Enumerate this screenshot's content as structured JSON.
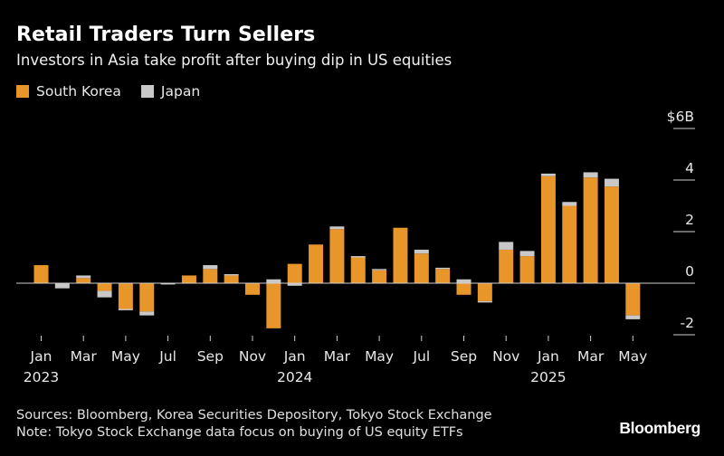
{
  "header": {
    "title": "Retail Traders Turn Sellers",
    "subtitle": "Investors in Asia take profit after buying dip in US equities"
  },
  "legend": [
    {
      "label": "South Korea",
      "color": "#e8952a"
    },
    {
      "label": "Japan",
      "color": "#c8c8c8"
    }
  ],
  "footer": {
    "sources": "Sources: Bloomberg, Korea Securities Depository, Tokyo Stock Exchange",
    "note": "Note: Tokyo Stock Exchange data focus on buying of US equity ETFs",
    "brand": "Bloomberg"
  },
  "chart_data": {
    "type": "bar",
    "stacked": true,
    "grid": false,
    "y_axis_side": "right",
    "ylim": [
      -2.5,
      6
    ],
    "ytick_labels": [
      {
        "value": 6,
        "label": "$6B"
      },
      {
        "value": 4,
        "label": "4"
      },
      {
        "value": 2,
        "label": "2"
      },
      {
        "value": 0,
        "label": "0"
      },
      {
        "value": -2,
        "label": "-2"
      }
    ],
    "xtick_labels": [
      {
        "index": 0,
        "label": "Jan",
        "year": "2023"
      },
      {
        "index": 2,
        "label": "Mar"
      },
      {
        "index": 4,
        "label": "May"
      },
      {
        "index": 6,
        "label": "Jul"
      },
      {
        "index": 8,
        "label": "Sep"
      },
      {
        "index": 10,
        "label": "Nov"
      },
      {
        "index": 12,
        "label": "Jan",
        "year": "2024"
      },
      {
        "index": 14,
        "label": "Mar"
      },
      {
        "index": 16,
        "label": "May"
      },
      {
        "index": 18,
        "label": "Jul"
      },
      {
        "index": 20,
        "label": "Sep"
      },
      {
        "index": 22,
        "label": "Nov"
      },
      {
        "index": 24,
        "label": "Jan",
        "year": "2025"
      },
      {
        "index": 26,
        "label": "Mar"
      },
      {
        "index": 28,
        "label": "May"
      }
    ],
    "categories": [
      "2023-01",
      "2023-02",
      "2023-03",
      "2023-04",
      "2023-05",
      "2023-06",
      "2023-07",
      "2023-08",
      "2023-09",
      "2023-10",
      "2023-11",
      "2023-12",
      "2024-01",
      "2024-02",
      "2024-03",
      "2024-04",
      "2024-05",
      "2024-06",
      "2024-07",
      "2024-08",
      "2024-09",
      "2024-10",
      "2024-11",
      "2024-12",
      "2025-01",
      "2025-02",
      "2025-03",
      "2025-04",
      "2025-05"
    ],
    "series": [
      {
        "name": "South Korea",
        "color": "#e8952a",
        "values": [
          0.7,
          0.0,
          0.2,
          -0.3,
          -1.0,
          -1.1,
          0.0,
          0.3,
          0.55,
          0.3,
          -0.45,
          -1.75,
          0.75,
          1.5,
          2.1,
          1.0,
          0.5,
          2.15,
          1.15,
          0.55,
          -0.45,
          -0.7,
          1.3,
          1.05,
          4.15,
          3.0,
          4.1,
          3.75,
          -1.25
        ]
      },
      {
        "name": "Japan",
        "color": "#c8c8c8",
        "values": [
          0.0,
          -0.2,
          0.1,
          -0.25,
          -0.05,
          -0.15,
          -0.05,
          0.0,
          0.15,
          0.05,
          0.0,
          0.15,
          -0.1,
          0.0,
          0.1,
          0.05,
          0.05,
          0.0,
          0.15,
          0.05,
          0.15,
          -0.05,
          0.3,
          0.2,
          0.1,
          0.15,
          0.2,
          0.3,
          -0.15
        ]
      }
    ]
  }
}
